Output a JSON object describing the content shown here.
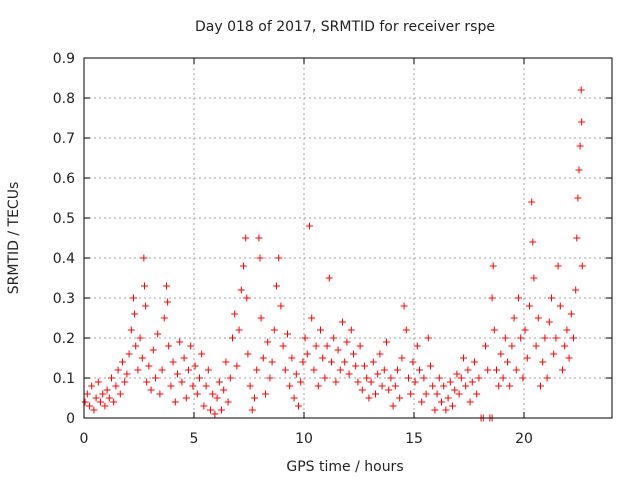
{
  "chart_data": {
    "type": "scatter",
    "title": "Day 018 of 2017, SRMTID for receiver rspe",
    "xlabel": "GPS time / hours",
    "ylabel": "SRMTID / TECUs",
    "xlim": [
      0,
      24
    ],
    "ylim": [
      0,
      0.9
    ],
    "xticks": [
      0,
      5,
      10,
      15,
      20
    ],
    "yticks": [
      0,
      0.1,
      0.2,
      0.3,
      0.4,
      0.5,
      0.6,
      0.7,
      0.8,
      0.9
    ],
    "xtick_labels": [
      "0",
      "5",
      "10",
      "15",
      "20"
    ],
    "ytick_labels": [
      "0",
      "0.1",
      "0.2",
      "0.3",
      "0.4",
      "0.5",
      "0.6",
      "0.7",
      "0.8",
      "0.9"
    ],
    "grid": true,
    "marker": "plus",
    "color": "#ff0000",
    "series": [
      {
        "name": "SRMTID",
        "points": [
          [
            0.05,
            0.04
          ],
          [
            0.15,
            0.06
          ],
          [
            0.25,
            0.03
          ],
          [
            0.35,
            0.08
          ],
          [
            0.45,
            0.02
          ],
          [
            0.55,
            0.05
          ],
          [
            0.65,
            0.09
          ],
          [
            0.75,
            0.04
          ],
          [
            0.85,
            0.06
          ],
          [
            0.95,
            0.03
          ],
          [
            1.05,
            0.07
          ],
          [
            1.15,
            0.05
          ],
          [
            1.25,
            0.1
          ],
          [
            1.35,
            0.04
          ],
          [
            1.45,
            0.08
          ],
          [
            1.55,
            0.12
          ],
          [
            1.65,
            0.06
          ],
          [
            1.75,
            0.14
          ],
          [
            1.85,
            0.09
          ],
          [
            1.95,
            0.11
          ],
          [
            2.05,
            0.16
          ],
          [
            2.15,
            0.22
          ],
          [
            2.25,
            0.3
          ],
          [
            2.3,
            0.26
          ],
          [
            2.35,
            0.18
          ],
          [
            2.45,
            0.12
          ],
          [
            2.55,
            0.2
          ],
          [
            2.65,
            0.15
          ],
          [
            2.72,
            0.4
          ],
          [
            2.75,
            0.33
          ],
          [
            2.8,
            0.28
          ],
          [
            2.85,
            0.09
          ],
          [
            2.95,
            0.13
          ],
          [
            3.05,
            0.07
          ],
          [
            3.15,
            0.17
          ],
          [
            3.25,
            0.1
          ],
          [
            3.35,
            0.21
          ],
          [
            3.45,
            0.06
          ],
          [
            3.55,
            0.12
          ],
          [
            3.65,
            0.25
          ],
          [
            3.75,
            0.33
          ],
          [
            3.8,
            0.29
          ],
          [
            3.85,
            0.18
          ],
          [
            3.95,
            0.08
          ],
          [
            4.05,
            0.14
          ],
          [
            4.15,
            0.04
          ],
          [
            4.25,
            0.11
          ],
          [
            4.35,
            0.19
          ],
          [
            4.45,
            0.09
          ],
          [
            4.55,
            0.15
          ],
          [
            4.65,
            0.05
          ],
          [
            4.75,
            0.12
          ],
          [
            4.85,
            0.18
          ],
          [
            4.95,
            0.08
          ],
          [
            5.05,
            0.13
          ],
          [
            5.15,
            0.06
          ],
          [
            5.25,
            0.1
          ],
          [
            5.35,
            0.16
          ],
          [
            5.45,
            0.03
          ],
          [
            5.55,
            0.08
          ],
          [
            5.65,
            0.12
          ],
          [
            5.75,
            0.02
          ],
          [
            5.85,
            0.06
          ],
          [
            5.95,
            0.01
          ],
          [
            6.05,
            0.05
          ],
          [
            6.15,
            0.09
          ],
          [
            6.25,
            0.02
          ],
          [
            6.35,
            0.07
          ],
          [
            6.45,
            0.14
          ],
          [
            6.55,
            0.04
          ],
          [
            6.65,
            0.1
          ],
          [
            6.75,
            0.2
          ],
          [
            6.85,
            0.26
          ],
          [
            6.95,
            0.13
          ],
          [
            7.05,
            0.22
          ],
          [
            7.15,
            0.32
          ],
          [
            7.25,
            0.38
          ],
          [
            7.35,
            0.45
          ],
          [
            7.4,
            0.3
          ],
          [
            7.45,
            0.16
          ],
          [
            7.55,
            0.08
          ],
          [
            7.65,
            0.02
          ],
          [
            7.75,
            0.05
          ],
          [
            7.85,
            0.12
          ],
          [
            7.95,
            0.45
          ],
          [
            8.0,
            0.4
          ],
          [
            8.05,
            0.25
          ],
          [
            8.15,
            0.15
          ],
          [
            8.25,
            0.06
          ],
          [
            8.35,
            0.19
          ],
          [
            8.45,
            0.1
          ],
          [
            8.55,
            0.14
          ],
          [
            8.65,
            0.22
          ],
          [
            8.75,
            0.33
          ],
          [
            8.85,
            0.4
          ],
          [
            8.95,
            0.28
          ],
          [
            9.05,
            0.18
          ],
          [
            9.15,
            0.12
          ],
          [
            9.25,
            0.21
          ],
          [
            9.35,
            0.08
          ],
          [
            9.45,
            0.15
          ],
          [
            9.55,
            0.05
          ],
          [
            9.65,
            0.11
          ],
          [
            9.75,
            0.03
          ],
          [
            9.85,
            0.09
          ],
          [
            9.95,
            0.14
          ],
          [
            10.05,
            0.2
          ],
          [
            10.15,
            0.16
          ],
          [
            10.25,
            0.48
          ],
          [
            10.35,
            0.25
          ],
          [
            10.45,
            0.12
          ],
          [
            10.55,
            0.18
          ],
          [
            10.65,
            0.08
          ],
          [
            10.75,
            0.22
          ],
          [
            10.85,
            0.15
          ],
          [
            10.95,
            0.1
          ],
          [
            11.05,
            0.18
          ],
          [
            11.15,
            0.35
          ],
          [
            11.25,
            0.14
          ],
          [
            11.35,
            0.2
          ],
          [
            11.45,
            0.09
          ],
          [
            11.55,
            0.17
          ],
          [
            11.65,
            0.12
          ],
          [
            11.75,
            0.24
          ],
          [
            11.85,
            0.14
          ],
          [
            11.95,
            0.19
          ],
          [
            12.05,
            0.11
          ],
          [
            12.15,
            0.22
          ],
          [
            12.25,
            0.16
          ],
          [
            12.35,
            0.13
          ],
          [
            12.45,
            0.09
          ],
          [
            12.55,
            0.18
          ],
          [
            12.65,
            0.07
          ],
          [
            12.75,
            0.13
          ],
          [
            12.85,
            0.1
          ],
          [
            12.95,
            0.05
          ],
          [
            13.05,
            0.09
          ],
          [
            13.15,
            0.14
          ],
          [
            13.25,
            0.06
          ],
          [
            13.35,
            0.11
          ],
          [
            13.45,
            0.16
          ],
          [
            13.55,
            0.08
          ],
          [
            13.65,
            0.12
          ],
          [
            13.75,
            0.19
          ],
          [
            13.85,
            0.07
          ],
          [
            13.95,
            0.1
          ],
          [
            14.05,
            0.03
          ],
          [
            14.15,
            0.08
          ],
          [
            14.25,
            0.12
          ],
          [
            14.35,
            0.05
          ],
          [
            14.45,
            0.15
          ],
          [
            14.55,
            0.28
          ],
          [
            14.65,
            0.22
          ],
          [
            14.75,
            0.1
          ],
          [
            14.85,
            0.06
          ],
          [
            14.95,
            0.14
          ],
          [
            15.05,
            0.09
          ],
          [
            15.15,
            0.18
          ],
          [
            15.25,
            0.12
          ],
          [
            15.35,
            0.04
          ],
          [
            15.45,
            0.1
          ],
          [
            15.55,
            0.06
          ],
          [
            15.65,
            0.2
          ],
          [
            15.75,
            0.13
          ],
          [
            15.85,
            0.08
          ],
          [
            15.95,
            0.02
          ],
          [
            16.05,
            0.06
          ],
          [
            16.15,
            0.1
          ],
          [
            16.25,
            0.04
          ],
          [
            16.35,
            0.08
          ],
          [
            16.45,
            0.02
          ],
          [
            16.55,
            0.05
          ],
          [
            16.65,
            0.09
          ],
          [
            16.75,
            0.03
          ],
          [
            16.85,
            0.07
          ],
          [
            16.95,
            0.11
          ],
          [
            17.05,
            0.06
          ],
          [
            17.15,
            0.1
          ],
          [
            17.25,
            0.15
          ],
          [
            17.35,
            0.08
          ],
          [
            17.45,
            0.12
          ],
          [
            17.55,
            0.04
          ],
          [
            17.65,
            0.09
          ],
          [
            17.75,
            0.14
          ],
          [
            17.85,
            0.06
          ],
          [
            17.95,
            0.1
          ],
          [
            18.05,
            0.0
          ],
          [
            18.15,
            0.0
          ],
          [
            18.25,
            0.18
          ],
          [
            18.35,
            0.12
          ],
          [
            18.45,
            0.0
          ],
          [
            18.55,
            0.0
          ],
          [
            18.55,
            0.3
          ],
          [
            18.6,
            0.38
          ],
          [
            18.65,
            0.22
          ],
          [
            18.75,
            0.12
          ],
          [
            18.85,
            0.08
          ],
          [
            18.95,
            0.16
          ],
          [
            19.05,
            0.1
          ],
          [
            19.15,
            0.2
          ],
          [
            19.25,
            0.14
          ],
          [
            19.35,
            0.08
          ],
          [
            19.45,
            0.18
          ],
          [
            19.55,
            0.25
          ],
          [
            19.65,
            0.12
          ],
          [
            19.75,
            0.3
          ],
          [
            19.85,
            0.2
          ],
          [
            19.95,
            0.1
          ],
          [
            20.05,
            0.22
          ],
          [
            20.15,
            0.15
          ],
          [
            20.25,
            0.28
          ],
          [
            20.35,
            0.54
          ],
          [
            20.4,
            0.44
          ],
          [
            20.45,
            0.35
          ],
          [
            20.55,
            0.18
          ],
          [
            20.65,
            0.25
          ],
          [
            20.75,
            0.08
          ],
          [
            20.85,
            0.14
          ],
          [
            20.95,
            0.2
          ],
          [
            21.05,
            0.1
          ],
          [
            21.15,
            0.24
          ],
          [
            21.25,
            0.3
          ],
          [
            21.35,
            0.16
          ],
          [
            21.45,
            0.2
          ],
          [
            21.55,
            0.38
          ],
          [
            21.65,
            0.28
          ],
          [
            21.75,
            0.12
          ],
          [
            21.85,
            0.18
          ],
          [
            21.95,
            0.22
          ],
          [
            22.05,
            0.15
          ],
          [
            22.15,
            0.26
          ],
          [
            22.25,
            0.2
          ],
          [
            22.35,
            0.32
          ],
          [
            22.4,
            0.45
          ],
          [
            22.45,
            0.55
          ],
          [
            22.5,
            0.62
          ],
          [
            22.55,
            0.68
          ],
          [
            22.6,
            0.82
          ],
          [
            22.62,
            0.74
          ],
          [
            22.65,
            0.38
          ]
        ]
      }
    ]
  }
}
